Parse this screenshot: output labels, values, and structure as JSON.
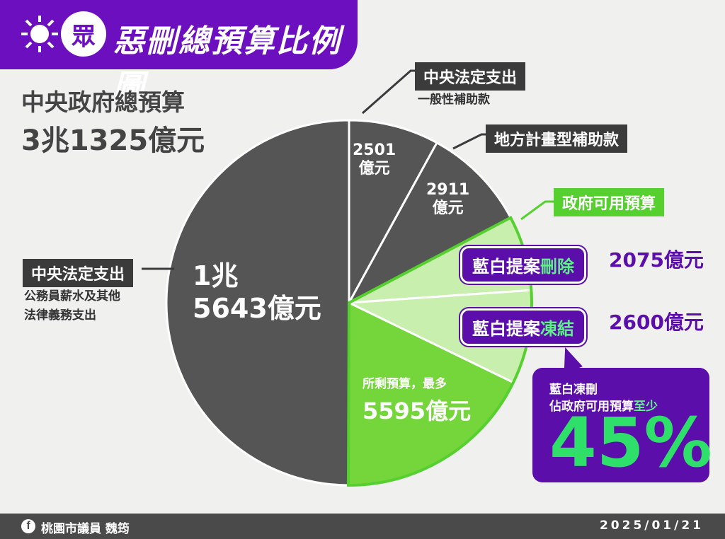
{
  "header": {
    "badge_text": "眾",
    "title": "惡刪總預算比例圖"
  },
  "total": {
    "label": "中央政府總預算",
    "value": "3兆1325億元"
  },
  "labels": {
    "central_mandatory_main": "中央法定支出",
    "central_mandatory_main_note1": "公務員薪水及其他",
    "central_mandatory_main_note2": "法律義務支出",
    "central_mandatory_subsidy": "中央法定支出",
    "central_mandatory_subsidy_note": "一般性補助款",
    "local_plan_subsidy": "地方計畫型補助款",
    "gov_available": "政府可用預算",
    "delete_pill_prefix": "藍白提案",
    "delete_pill_hl": "刪除",
    "delete_amount": "2075億元",
    "freeze_pill_prefix": "藍白提案",
    "freeze_pill_hl": "凍結",
    "freeze_amount": "2600億元",
    "remain_label": "所剩預算，最多",
    "remain_value": "5595億元"
  },
  "slice_labels": {
    "big_line1": "1兆",
    "big_line2": "5643億元",
    "s2501_line1": "2501",
    "s2501_line2": "億元",
    "s2911_line1": "2911",
    "s2911_line2": "億元"
  },
  "callout": {
    "line1": "藍白凍刪",
    "line2_prefix": "佔政府可用預算",
    "line2_hl": "至少",
    "big": "45%"
  },
  "footer": {
    "icon": "f",
    "name": "桃園市議員 魏筠",
    "date": "2025/01/21"
  },
  "chart_data": {
    "type": "pie",
    "unit": "億元",
    "slices": [
      {
        "value": 2501,
        "color": "#555555"
      },
      {
        "value": 2911,
        "color": "#555555"
      },
      {
        "value": 2075,
        "color": "#c9efae"
      },
      {
        "value": 2600,
        "color": "#c9efae"
      },
      {
        "value": 5595,
        "color": "#74d63b"
      },
      {
        "value": 15643,
        "color": "#555555"
      }
    ]
  }
}
